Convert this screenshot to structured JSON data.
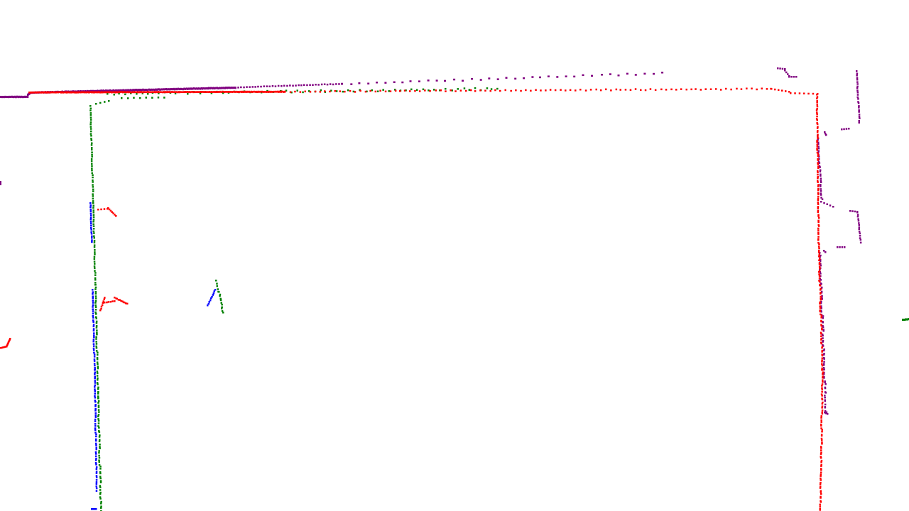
{
  "view": {
    "background": "#ffffff",
    "description_free": true
  },
  "scans": [
    {
      "id": "scan-red",
      "color": "#ff0000"
    },
    {
      "id": "scan-green",
      "color": "#008000"
    },
    {
      "id": "scan-blue",
      "color": "#0000ff"
    },
    {
      "id": "scan-purple",
      "color": "#800080"
    }
  ]
}
